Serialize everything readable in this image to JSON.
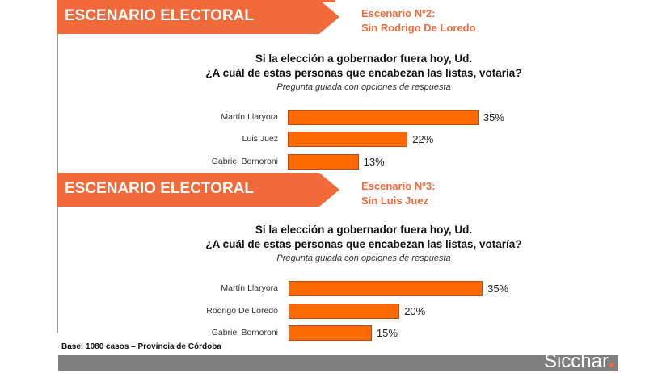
{
  "colors": {
    "accent": "#f26a3a",
    "bar": "#ff6a00",
    "footer": "#7f7f7f"
  },
  "chart_data": [
    {
      "type": "bar",
      "orientation": "horizontal",
      "header": "ESCENARIO ELECTORAL",
      "scenario": [
        "Escenario Nº2:",
        "Sin Rodrigo De Loredo"
      ],
      "title": [
        "Si la elección a gobernador fuera hoy, Ud.",
        "¿A cuál de estas personas que encabezan las listas, votaría?"
      ],
      "subtitle": "Pregunta guiada con opciones de respuesta",
      "categories": [
        "Martín Llaryora",
        "Luis Juez",
        "Gabriel Bornoroni"
      ],
      "values": [
        35,
        22,
        13
      ],
      "labels": [
        "35%",
        "22%",
        "13%"
      ]
    },
    {
      "type": "bar",
      "orientation": "horizontal",
      "header": "ESCENARIO ELECTORAL",
      "scenario": [
        "Escenario Nº3:",
        "Sin Luis Juez"
      ],
      "title": [
        "Si la elección a gobernador fuera hoy, Ud.",
        "¿A cuál de estas personas que encabezan las listas, votaría?"
      ],
      "subtitle": "Pregunta guiada con opciones de respuesta",
      "categories": [
        "Martín Llaryora",
        "Rodrigo De Loredo",
        "Gabriel Bornoroni"
      ],
      "values": [
        35,
        20,
        15
      ],
      "labels": [
        "35%",
        "20%",
        "15%"
      ]
    }
  ],
  "base_note": "Base: 1080 casos – Provincia de Córdoba",
  "logo": "Sicchar"
}
